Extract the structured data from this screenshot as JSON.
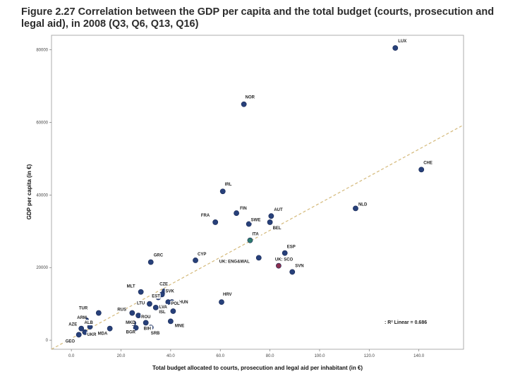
{
  "title": "Figure 2.27 Correlation between the GDP per capita and the total budget (courts, prosecution and legal aid), in 2008 (Q3, Q6, Q13, Q16)",
  "chart_data": {
    "type": "scatter",
    "title": "Figure 2.27 Correlation between the GDP per capita and the total budget (courts, prosecution and legal aid), in 2008 (Q3, Q6, Q13, Q16)",
    "xlabel": "Total budget allocated to courts, prosecution and legal aid per inhabitant (in €)",
    "ylabel": "GDP per capita (in €)",
    "xlim": [
      -8,
      158
    ],
    "ylim": [
      -2500,
      84000
    ],
    "xticks": [
      0,
      20,
      40,
      60,
      80,
      100,
      120,
      140
    ],
    "xtick_labels": [
      "0.0",
      "20.0",
      "40.0",
      "60.0",
      "80.0",
      "100.0",
      "120.0",
      "140.0"
    ],
    "yticks": [
      0,
      20000,
      40000,
      60000,
      80000
    ],
    "ytick_labels": [
      "0",
      "20000",
      "40000",
      "60000",
      "80000"
    ],
    "grid": false,
    "annotation": ": R² Linear = 0.686",
    "fit_line": {
      "x": [
        -8,
        158
      ],
      "y": [
        -2500,
        59300
      ],
      "color": "#d4b97a"
    },
    "point_color": "#27407a",
    "points": [
      {
        "label": "LUX",
        "x": 130.5,
        "y": 80500
      },
      {
        "label": "NOR",
        "x": 69.5,
        "y": 65000
      },
      {
        "label": "CHE",
        "x": 141,
        "y": 47000
      },
      {
        "label": "IRL",
        "x": 61,
        "y": 41000
      },
      {
        "label": "NLD",
        "x": 114.5,
        "y": 36300
      },
      {
        "label": "FIN",
        "x": 66.5,
        "y": 35000
      },
      {
        "label": "AUT",
        "x": 80.5,
        "y": 34200
      },
      {
        "label": "FRA",
        "x": 58,
        "y": 32500
      },
      {
        "label": "SWE",
        "x": 71.5,
        "y": 32000
      },
      {
        "label": "BEL",
        "x": 80,
        "y": 32500
      },
      {
        "label": "ITA",
        "x": 72,
        "y": 27500
      },
      {
        "label": "ESP",
        "x": 86,
        "y": 24000
      },
      {
        "label": "GRC",
        "x": 32,
        "y": 21500
      },
      {
        "label": "CYP",
        "x": 50,
        "y": 22000
      },
      {
        "label": "UK: ENG&WAL",
        "x": 75.5,
        "y": 22700
      },
      {
        "label": "UK: SCO",
        "x": 83.5,
        "y": 20500
      },
      {
        "label": "SVN",
        "x": 89,
        "y": 18800
      },
      {
        "label": "MLT",
        "x": 28,
        "y": 13300
      },
      {
        "label": "CZE",
        "x": 37.5,
        "y": 13500
      },
      {
        "label": "SVK",
        "x": 36.5,
        "y": 12600
      },
      {
        "label": "HUN",
        "x": 40.5,
        "y": 10500
      },
      {
        "label": "EST",
        "x": 35,
        "y": 11800
      },
      {
        "label": "POL",
        "x": 39,
        "y": 10500
      },
      {
        "label": "HRV",
        "x": 60.5,
        "y": 10500
      },
      {
        "label": "LTU",
        "x": 31.5,
        "y": 10000
      },
      {
        "label": "LVA",
        "x": 34,
        "y": 9000
      },
      {
        "label": "ISL",
        "x": 41,
        "y": 8000
      },
      {
        "label": "RUS",
        "x": 24.5,
        "y": 7500
      },
      {
        "label": "TUR",
        "x": 11,
        "y": 7500
      },
      {
        "label": "ROU",
        "x": 27,
        "y": 6800
      },
      {
        "label": "ARM",
        "x": 6,
        "y": 5500
      },
      {
        "label": "ALB",
        "x": 7.5,
        "y": 3700
      },
      {
        "label": "AZE",
        "x": 4,
        "y": 3200
      },
      {
        "label": "MKD",
        "x": 25,
        "y": 4700
      },
      {
        "label": "BGR",
        "x": 26,
        "y": 3400
      },
      {
        "label": "MNE",
        "x": 40,
        "y": 5200
      },
      {
        "label": "BIH",
        "x": 30,
        "y": 4800
      },
      {
        "label": "SRB",
        "x": 32,
        "y": 3500
      },
      {
        "label": "UKR",
        "x": 5.5,
        "y": 2200
      },
      {
        "label": "GEO",
        "x": 3,
        "y": 1500
      },
      {
        "label": "MDA",
        "x": 15.5,
        "y": 3200
      }
    ]
  }
}
